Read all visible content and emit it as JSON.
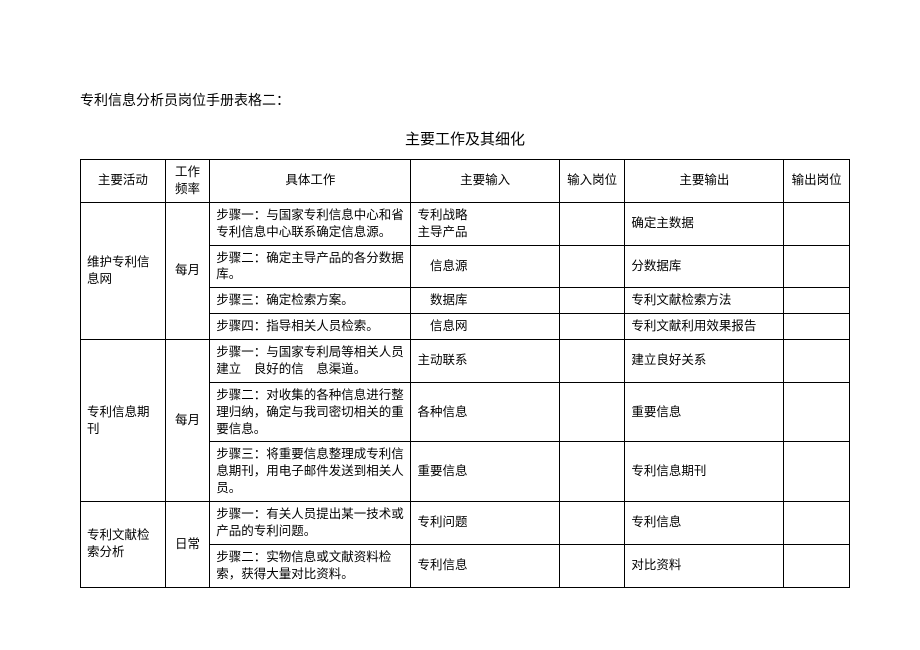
{
  "doc_title": "专利信息分析员岗位手册表格二：",
  "table_title": "主要工作及其细化",
  "columns": {
    "activity": "主要活动",
    "freq": "工作频率",
    "work": "具体工作",
    "input": "主要输入",
    "inputpos": "输入岗位",
    "output": "主要输出",
    "outputpos": "输出岗位"
  },
  "groups": [
    {
      "activity": "维护专利信息网",
      "freq": "每月",
      "rows": [
        {
          "work": "步骤一：与国家专利信息中心和省专利信息中心联系确定信息源。",
          "input": "专利战略\n主导产品",
          "inputpos": "",
          "output": "确定主数据",
          "outputpos": ""
        },
        {
          "work": "步骤二：确定主导产品的各分数据库。",
          "input": "　信息源",
          "inputpos": "",
          "output": "分数据库",
          "outputpos": ""
        },
        {
          "work": "步骤三：确定检索方案。",
          "input": "　数据库",
          "inputpos": "",
          "output": "专利文献检索方法",
          "outputpos": ""
        },
        {
          "work": "步骤四：指导相关人员检索。",
          "input": "　信息网",
          "inputpos": "",
          "output": "专利文献利用效果报告",
          "outputpos": ""
        }
      ]
    },
    {
      "activity": "专利信息期刊",
      "freq": "每月",
      "rows": [
        {
          "work": "步骤一：与国家专利局等相关人员建立　良好的信　息渠道。",
          "input": "主动联系",
          "inputpos": "",
          "output": "建立良好关系",
          "outputpos": ""
        },
        {
          "work": "步骤二：对收集的各种信息进行整理归纳，确定与我司密切相关的重要信息。",
          "input": "各种信息",
          "inputpos": "",
          "output": "重要信息",
          "outputpos": ""
        },
        {
          "work": "步骤三：将重要信息整理成专利信息期刊，用电子邮件发送到相关人员。",
          "input": "重要信息",
          "inputpos": "",
          "output": "专利信息期刊",
          "outputpos": ""
        }
      ]
    },
    {
      "activity": "专利文献检索分析",
      "freq": "日常",
      "rows": [
        {
          "work": "步骤一：有关人员提出某一技术或产品的专利问题。",
          "input": "专利问题",
          "inputpos": "",
          "output": "专利信息",
          "outputpos": ""
        },
        {
          "work": "步骤二：实物信息或文献资料检索，获得大量对比资料。",
          "input": "专利信息",
          "inputpos": "",
          "output": "对比资料",
          "outputpos": ""
        }
      ]
    }
  ]
}
